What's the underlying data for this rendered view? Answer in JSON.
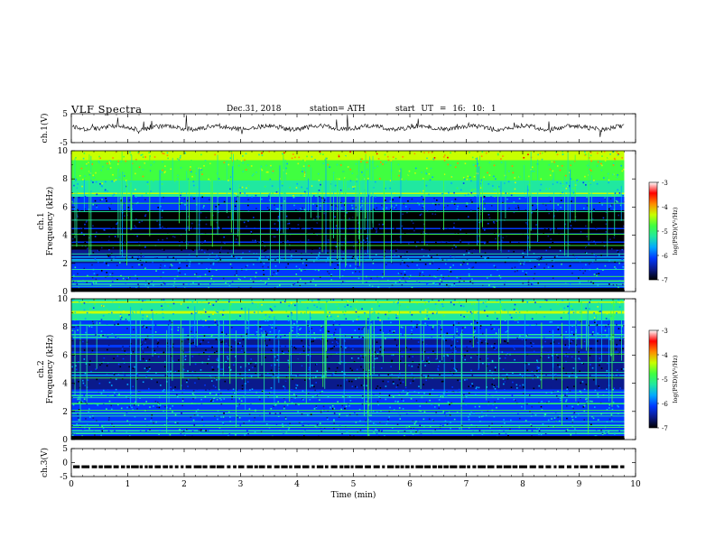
{
  "header": {
    "title": "VLF  Spectra",
    "date": "Dec.31, 2018",
    "station": "station= ATH",
    "start": "start  UT  =   16: 10: 1"
  },
  "chart_data": [
    {
      "id": "ch1-waveform",
      "type": "line",
      "ylabel": "ch.1(V)",
      "ylim": [
        -5,
        5
      ],
      "yticks": [
        {
          "v": 5,
          "label": "5"
        },
        {
          "v": -5,
          "label": "-5"
        }
      ],
      "xlim": [
        0,
        10
      ],
      "series": [
        {
          "color": "#000000",
          "baseline": 0.2,
          "trace_end_min": 9.8
        }
      ]
    },
    {
      "id": "ch1-spectrogram",
      "type": "heatmap",
      "ylabel": "ch.1\nFrequency  (kHz)",
      "ylim": [
        0,
        10
      ],
      "yticks": [
        "0",
        "2",
        "4",
        "6",
        "8",
        "10"
      ],
      "xlim": [
        0,
        10
      ],
      "data_end_min": 9.8,
      "colorbar": {
        "label": "log(PSD)(V²/Hz)",
        "range": [
          -7,
          -3
        ],
        "ticks": [
          "-3",
          "-4",
          "-5",
          "-6",
          "-7"
        ],
        "colors": [
          "#000000",
          "#0a1a8c",
          "#0038ff",
          "#00a8ff",
          "#20e8a0",
          "#40ff40",
          "#c8ff00",
          "#ff8c00",
          "#ff0000",
          "#ffffff"
        ]
      }
    },
    {
      "id": "ch2-spectrogram",
      "type": "heatmap",
      "ylabel": "ch.2\nFrequency  (kHz)",
      "ylim": [
        0,
        10
      ],
      "yticks": [
        "0",
        "2",
        "4",
        "6",
        "8",
        "10"
      ],
      "xlim": [
        0,
        10
      ],
      "data_end_min": 9.8,
      "colorbar": {
        "label": "log(PSD)(V²/Hz)",
        "range": [
          -7,
          -3
        ],
        "ticks": [
          "-3",
          "-4",
          "-5",
          "-6",
          "-7"
        ]
      }
    },
    {
      "id": "ch3-waveform",
      "type": "line",
      "ylabel": "ch.3(V)",
      "ylim": [
        -5,
        5
      ],
      "yticks": [
        {
          "v": 5,
          "label": "5"
        },
        {
          "v": 0,
          "label": "0"
        },
        {
          "v": -5,
          "label": "-5"
        }
      ],
      "xlim": [
        0,
        10
      ],
      "xlabel": "Time  (min)",
      "xticks": [
        "0",
        "1",
        "2",
        "3",
        "4",
        "5",
        "6",
        "7",
        "8",
        "9",
        "10"
      ],
      "series": [
        {
          "color": "#000000",
          "baseline": -1.5,
          "style": "dashed",
          "trace_end_min": 9.8
        }
      ]
    }
  ]
}
